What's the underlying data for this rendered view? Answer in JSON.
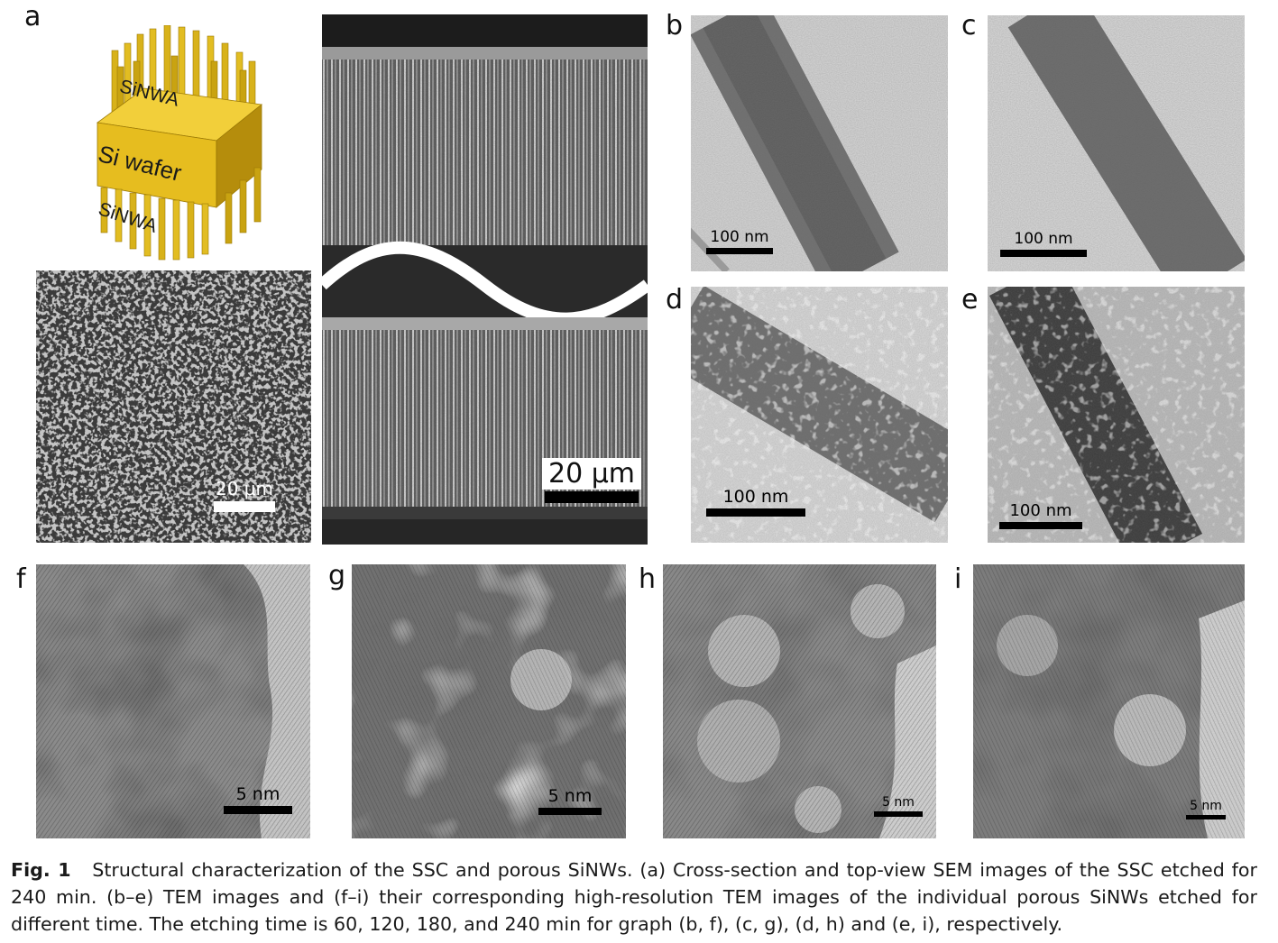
{
  "panel_labels": {
    "a": "a",
    "b": "b",
    "c": "c",
    "d": "d",
    "e": "e",
    "f": "f",
    "g": "g",
    "h": "h",
    "i": "i"
  },
  "schematic": {
    "top_label": "SiNWA",
    "middle_label": "Si wafer",
    "bottom_label": "SiNWA",
    "colors": {
      "rod": "#d8b21a",
      "cube_front": "#e6bd1f",
      "cube_side": "#b58d0c",
      "cube_top": "#f2cf3a"
    }
  },
  "scale_bars": {
    "sem_top_view": "20 μm",
    "sem_cross_section": "20 μm",
    "b": "100 nm",
    "c": "100 nm",
    "d": "100 nm",
    "e": "100 nm",
    "f": "5 nm",
    "g": "5 nm",
    "h": "5 nm",
    "i": "5 nm"
  },
  "caption": {
    "figure_label": "Fig. 1",
    "text": "Structural characterization of the SSC and porous SiNWs. (a) Cross-section and top-view SEM images of the SSC etched for 240 min. (b–e) TEM images and (f–i) their corresponding high-resolution TEM images of the individual porous SiNWs etched for different time. The etching time is 60, 120, 180, and 240 min for graph (b, f), (c, g), (d, h) and (e, i), respectively."
  }
}
